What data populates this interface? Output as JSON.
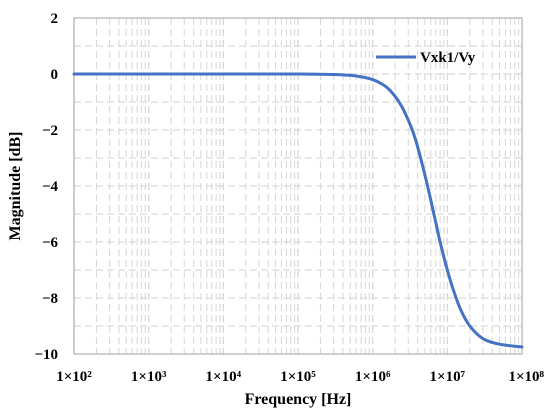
{
  "chart_data": {
    "type": "line",
    "xlabel": "Frequency [Hz]",
    "ylabel": "Magnitude [dB]",
    "x_scale": "log",
    "xlim": [
      100,
      100000000
    ],
    "ylim": [
      -10,
      2
    ],
    "grid": "major and minor, dashed",
    "legend_position": "top-right",
    "x_ticks": [
      {
        "value": 100,
        "label": "1×10²"
      },
      {
        "value": 1000,
        "label": "1×10³"
      },
      {
        "value": 10000,
        "label": "1×10⁴"
      },
      {
        "value": 100000,
        "label": "1×10⁵"
      },
      {
        "value": 1000000,
        "label": "1×10⁶"
      },
      {
        "value": 10000000,
        "label": "1×10⁷"
      },
      {
        "value": 100000000,
        "label": "1×10⁸"
      }
    ],
    "y_ticks": [
      {
        "value": 2,
        "label": "2"
      },
      {
        "value": 0,
        "label": "0"
      },
      {
        "value": -2,
        "label": "−2"
      },
      {
        "value": -4,
        "label": "−4"
      },
      {
        "value": -6,
        "label": "−6"
      },
      {
        "value": -8,
        "label": "−8"
      },
      {
        "value": -10,
        "label": "−10"
      }
    ],
    "series": [
      {
        "name": "Vxk1/Vy",
        "color": "#4472C4",
        "points": [
          [
            100,
            0
          ],
          [
            1000,
            0
          ],
          [
            10000,
            0
          ],
          [
            100000,
            0
          ],
          [
            300000,
            -0.02
          ],
          [
            600000,
            -0.07
          ],
          [
            1000000,
            -0.2
          ],
          [
            1500000,
            -0.45
          ],
          [
            2000000,
            -0.8
          ],
          [
            2500000,
            -1.2
          ],
          [
            3000000,
            -1.65
          ],
          [
            3500000,
            -2.1
          ],
          [
            4000000,
            -2.6
          ],
          [
            5000000,
            -3.6
          ],
          [
            6000000,
            -4.5
          ],
          [
            7000000,
            -5.3
          ],
          [
            8000000,
            -6.0
          ],
          [
            10000000,
            -7.0
          ],
          [
            12000000,
            -7.7
          ],
          [
            15000000,
            -8.4
          ],
          [
            20000000,
            -9.0
          ],
          [
            30000000,
            -9.45
          ],
          [
            50000000,
            -9.65
          ],
          [
            100000000,
            -9.75
          ]
        ]
      }
    ]
  }
}
